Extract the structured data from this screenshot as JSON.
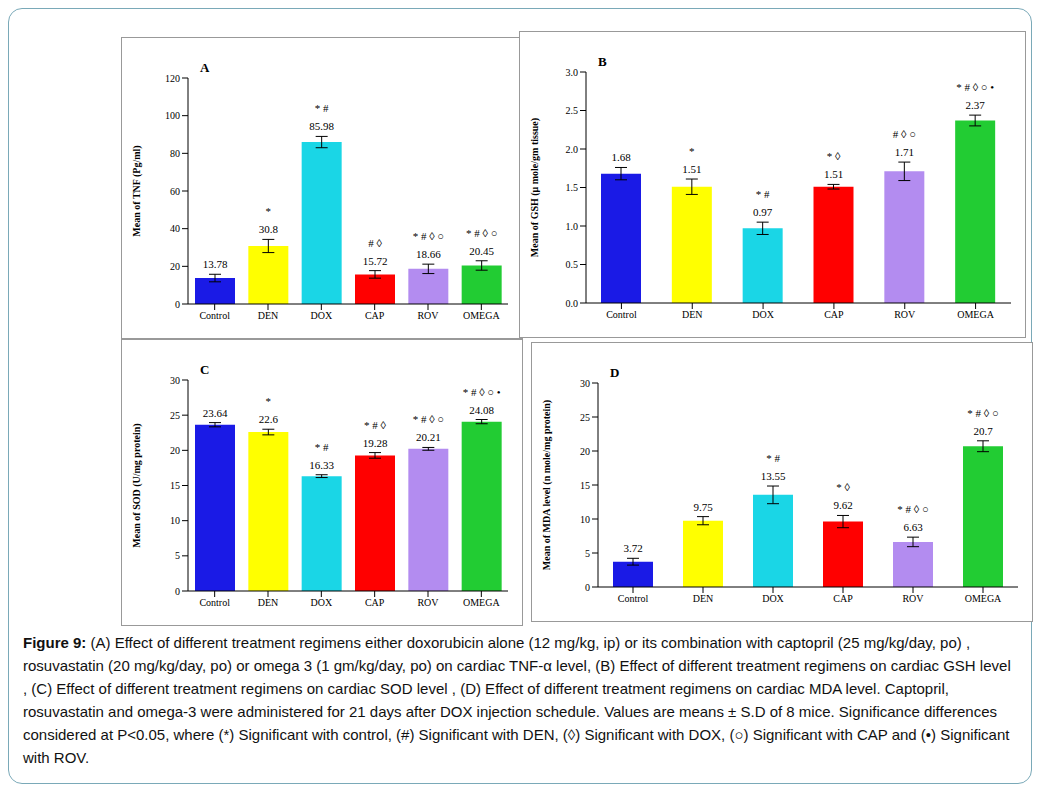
{
  "chart_data": [
    {
      "type": "bar",
      "panel": "A",
      "y_label": "Mean of TNF (Pg/ml)",
      "categories": [
        "Control",
        "DEN",
        "DOX",
        "CAP",
        "ROV",
        "OMEGA"
      ],
      "values": [
        13.78,
        30.8,
        85.98,
        15.72,
        18.66,
        20.45
      ],
      "errors": [
        2,
        3.5,
        3,
        2,
        2.5,
        2.5
      ],
      "annotations": [
        null,
        "*",
        "* #",
        "# ◊",
        "* # ◊ ○",
        "* # ◊ ○"
      ],
      "colors": [
        "#1a1ae6",
        "#ffff00",
        "#1ad6e6",
        "#ff0000",
        "#b38cf0",
        "#22cc33"
      ],
      "ylim": [
        0,
        120
      ],
      "yticks": [
        0,
        20,
        40,
        60,
        80,
        100,
        120
      ],
      "grid": false,
      "data_labels": true
    },
    {
      "type": "bar",
      "panel": "B",
      "y_label": "Mean of GSH (μ mole/gm tissue)",
      "categories": [
        "Control",
        "DEN",
        "DOX",
        "CAP",
        "ROV",
        "OMEGA"
      ],
      "values": [
        1.68,
        1.51,
        0.97,
        1.51,
        1.71,
        2.37
      ],
      "errors": [
        0.08,
        0.1,
        0.08,
        0.03,
        0.12,
        0.07
      ],
      "annotations": [
        null,
        "*",
        "* #",
        "* ◊",
        "# ◊ ○",
        "* # ◊ ○ •"
      ],
      "colors": [
        "#1a1ae6",
        "#ffff00",
        "#1ad6e6",
        "#ff0000",
        "#b38cf0",
        "#22cc33"
      ],
      "ylim": [
        0,
        3
      ],
      "yticks": [
        {
          "value": 0,
          "label": "0.0"
        },
        0.5,
        {
          "value": 1,
          "label": "1.0"
        },
        1.5,
        {
          "value": 2,
          "label": "2.0"
        },
        2.5,
        {
          "value": 3,
          "label": "3.0"
        }
      ],
      "grid": false,
      "data_labels": true
    },
    {
      "type": "bar",
      "panel": "C",
      "y_label": "Mean of SOD (U/mg protein)",
      "categories": [
        "Control",
        "DEN",
        "DOX",
        "CAP",
        "ROV",
        "OMEGA"
      ],
      "values": [
        23.64,
        22.6,
        16.33,
        19.28,
        20.21,
        24.08
      ],
      "errors": [
        0.3,
        0.4,
        0.2,
        0.4,
        0.2,
        0.3
      ],
      "annotations": [
        null,
        "*",
        "* #",
        "* # ◊",
        "* # ◊ ○",
        "* # ◊ ○ •"
      ],
      "colors": [
        "#1a1ae6",
        "#ffff00",
        "#1ad6e6",
        "#ff0000",
        "#b38cf0",
        "#22cc33"
      ],
      "ylim": [
        0,
        30
      ],
      "yticks": [
        0,
        5,
        10,
        15,
        20,
        25,
        30
      ],
      "grid": false,
      "data_labels": true
    },
    {
      "type": "bar",
      "panel": "D",
      "y_label": "Mean of MDA level (n mole/mg protein)",
      "categories": [
        "Control",
        "DEN",
        "DOX",
        "CAP",
        "ROV",
        "OMEGA"
      ],
      "values": [
        3.72,
        9.75,
        13.55,
        9.62,
        6.63,
        20.7
      ],
      "errors": [
        0.5,
        0.6,
        1.3,
        0.9,
        0.7,
        0.8
      ],
      "annotations": [
        null,
        null,
        "* #",
        "* ◊",
        "* # ◊ ○",
        "* # ◊ ○"
      ],
      "colors": [
        "#1a1ae6",
        "#ffff00",
        "#1ad6e6",
        "#ff0000",
        "#b38cf0",
        "#22cc33"
      ],
      "ylim": [
        0,
        30
      ],
      "yticks": [
        0,
        5,
        10,
        15,
        20,
        25,
        30
      ],
      "grid": false,
      "data_labels": true
    }
  ],
  "caption": {
    "label": "Figure 9:",
    "text": "(A) Effect of different treatment regimens either doxorubicin alone (12 mg/kg, ip) or its combination with captopril (25 mg/kg/day, po) , rosuvastatin (20 mg/kg/day, po) or omega 3 (1 gm/kg/day, po) on cardiac TNF-α level, (B) Effect of different treatment regimens on cardiac GSH level , (C) Effect of different treatment regimens on cardiac SOD level , (D) Effect of different treatment regimens on cardiac MDA level. Captopril, rosuvastatin and omega-3 were administered for 21 days after DOX injection schedule. Values are means ± S.D of 8 mice. Significance differences considered at P<0.05, where (*) Significant with control, (#) Significant with DEN, (◊) Significant with DOX, (○) Significant with CAP and (•) Significant with ROV."
  }
}
